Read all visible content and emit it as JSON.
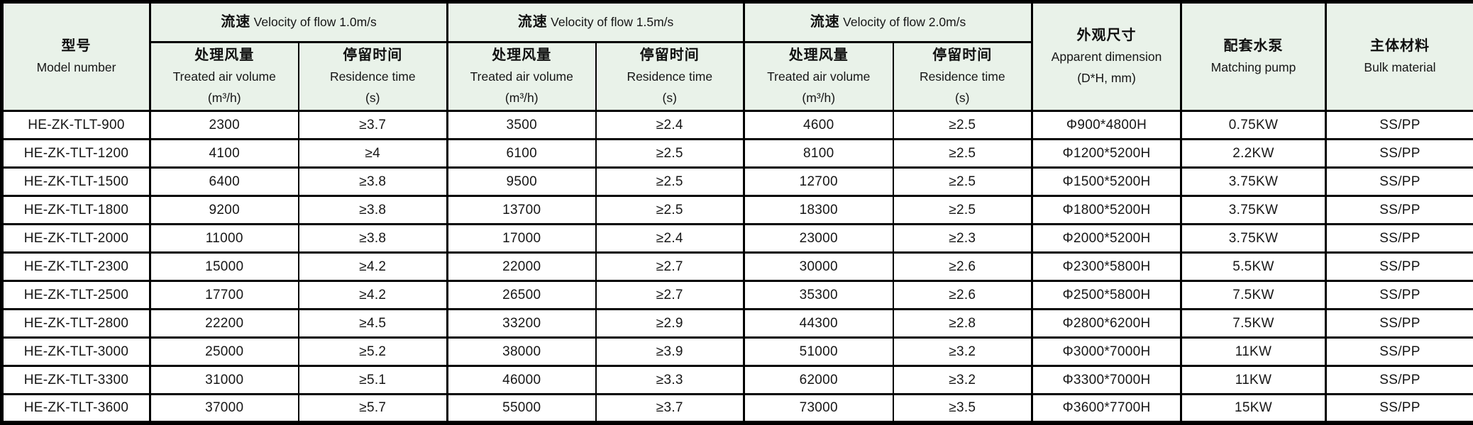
{
  "header": {
    "model": {
      "zh": "型号",
      "en": "Model number"
    },
    "groups": [
      {
        "zh": "流速",
        "en": "Velocity of flow 1.0m/s"
      },
      {
        "zh": "流速",
        "en": "Velocity of flow 1.5m/s"
      },
      {
        "zh": "流速",
        "en": "Velocity of flow 2.0m/s"
      }
    ],
    "sub": {
      "air": {
        "zh": "处理风量",
        "en": "Treated air volume",
        "unit": "(m³/h)"
      },
      "time": {
        "zh": "停留时间",
        "en": "Residence time",
        "unit": "(s)"
      }
    },
    "dimension": {
      "zh": "外观尺寸",
      "en": "Apparent dimension",
      "unit": "(D*H, mm)"
    },
    "pump": {
      "zh": "配套水泵",
      "en": "Matching pump"
    },
    "material": {
      "zh": "主体材料",
      "en": "Bulk material"
    }
  },
  "rows": [
    {
      "model": "HE-ZK-TLT-900",
      "v10_air": "2300",
      "v10_time": "≥3.7",
      "v15_air": "3500",
      "v15_time": "≥2.4",
      "v20_air": "4600",
      "v20_time": "≥2.5",
      "dimension": "Φ900*4800H",
      "pump": "0.75KW",
      "material": "SS/PP"
    },
    {
      "model": "HE-ZK-TLT-1200",
      "v10_air": "4100",
      "v10_time": "≥4",
      "v15_air": "6100",
      "v15_time": "≥2.5",
      "v20_air": "8100",
      "v20_time": "≥2.5",
      "dimension": "Φ1200*5200H",
      "pump": "2.2KW",
      "material": "SS/PP"
    },
    {
      "model": "HE-ZK-TLT-1500",
      "v10_air": "6400",
      "v10_time": "≥3.8",
      "v15_air": "9500",
      "v15_time": "≥2.5",
      "v20_air": "12700",
      "v20_time": "≥2.5",
      "dimension": "Φ1500*5200H",
      "pump": "3.75KW",
      "material": "SS/PP"
    },
    {
      "model": "HE-ZK-TLT-1800",
      "v10_air": "9200",
      "v10_time": "≥3.8",
      "v15_air": "13700",
      "v15_time": "≥2.5",
      "v20_air": "18300",
      "v20_time": "≥2.5",
      "dimension": "Φ1800*5200H",
      "pump": "3.75KW",
      "material": "SS/PP"
    },
    {
      "model": "HE-ZK-TLT-2000",
      "v10_air": "11000",
      "v10_time": "≥3.8",
      "v15_air": "17000",
      "v15_time": "≥2.4",
      "v20_air": "23000",
      "v20_time": "≥2.3",
      "dimension": "Φ2000*5200H",
      "pump": "3.75KW",
      "material": "SS/PP"
    },
    {
      "model": "HE-ZK-TLT-2300",
      "v10_air": "15000",
      "v10_time": "≥4.2",
      "v15_air": "22000",
      "v15_time": "≥2.7",
      "v20_air": "30000",
      "v20_time": "≥2.6",
      "dimension": "Φ2300*5800H",
      "pump": "5.5KW",
      "material": "SS/PP"
    },
    {
      "model": "HE-ZK-TLT-2500",
      "v10_air": "17700",
      "v10_time": "≥4.2",
      "v15_air": "26500",
      "v15_time": "≥2.7",
      "v20_air": "35300",
      "v20_time": "≥2.6",
      "dimension": "Φ2500*5800H",
      "pump": "7.5KW",
      "material": "SS/PP"
    },
    {
      "model": "HE-ZK-TLT-2800",
      "v10_air": "22200",
      "v10_time": "≥4.5",
      "v15_air": "33200",
      "v15_time": "≥2.9",
      "v20_air": "44300",
      "v20_time": "≥2.8",
      "dimension": "Φ2800*6200H",
      "pump": "7.5KW",
      "material": "SS/PP"
    },
    {
      "model": "HE-ZK-TLT-3000",
      "v10_air": "25000",
      "v10_time": "≥5.2",
      "v15_air": "38000",
      "v15_time": "≥3.9",
      "v20_air": "51000",
      "v20_time": "≥3.2",
      "dimension": "Φ3000*7000H",
      "pump": "11KW",
      "material": "SS/PP"
    },
    {
      "model": "HE-ZK-TLT-3300",
      "v10_air": "31000",
      "v10_time": "≥5.1",
      "v15_air": "46000",
      "v15_time": "≥3.3",
      "v20_air": "62000",
      "v20_time": "≥3.2",
      "dimension": "Φ3300*7000H",
      "pump": "11KW",
      "material": "SS/PP"
    },
    {
      "model": "HE-ZK-TLT-3600",
      "v10_air": "37000",
      "v10_time": "≥5.7",
      "v15_air": "55000",
      "v15_time": "≥3.7",
      "v20_air": "73000",
      "v20_time": "≥3.5",
      "dimension": "Φ3600*7700H",
      "pump": "15KW",
      "material": "SS/PP"
    }
  ],
  "colors": {
    "header_bg": "#e9f2e9",
    "border": "#000000",
    "row_bg": "#ffffff",
    "text": "#161616"
  }
}
